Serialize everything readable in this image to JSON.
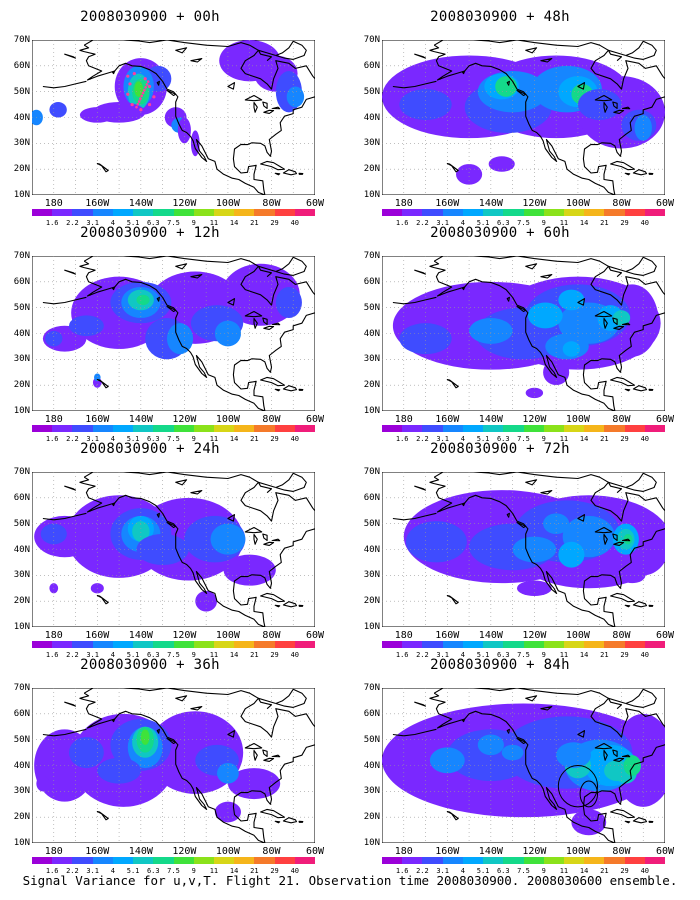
{
  "colorbar": {
    "labels": [
      "1.6",
      "2.2",
      "3.1",
      "4",
      "5.1",
      "6.3",
      "7.5",
      "9",
      "11",
      "14",
      "21",
      "29",
      "40"
    ],
    "colors": [
      "#9b00d9",
      "#7a28ff",
      "#3f4cff",
      "#1686ff",
      "#00a8ff",
      "#10c7c4",
      "#14d98a",
      "#3fe23a",
      "#8be21a",
      "#d7d617",
      "#f5b51a",
      "#f57a2a",
      "#ff4040",
      "#f01d7a"
    ]
  },
  "axes": {
    "y_labels": [
      "70N",
      "60N",
      "50N",
      "40N",
      "30N",
      "20N",
      "10N"
    ],
    "x_labels": [
      "180",
      "160W",
      "140W",
      "120W",
      "100W",
      "80W",
      "60W"
    ]
  },
  "panels": [
    {
      "title": "2008030900 + 00h",
      "lead_h": 0
    },
    {
      "title": "2008030900 + 48h",
      "lead_h": 48
    },
    {
      "title": "2008030900 + 12h",
      "lead_h": 12
    },
    {
      "title": "2008030900 + 60h",
      "lead_h": 60
    },
    {
      "title": "2008030900 + 24h",
      "lead_h": 24
    },
    {
      "title": "2008030900 + 72h",
      "lead_h": 72
    },
    {
      "title": "2008030900 + 36h",
      "lead_h": 36
    },
    {
      "title": "2008030900 + 84h",
      "lead_h": 84
    }
  ],
  "footer": "Signal Variance for u,v,T. Flight 21. Observation time 2008030900. 2008030600 ensemble."
}
